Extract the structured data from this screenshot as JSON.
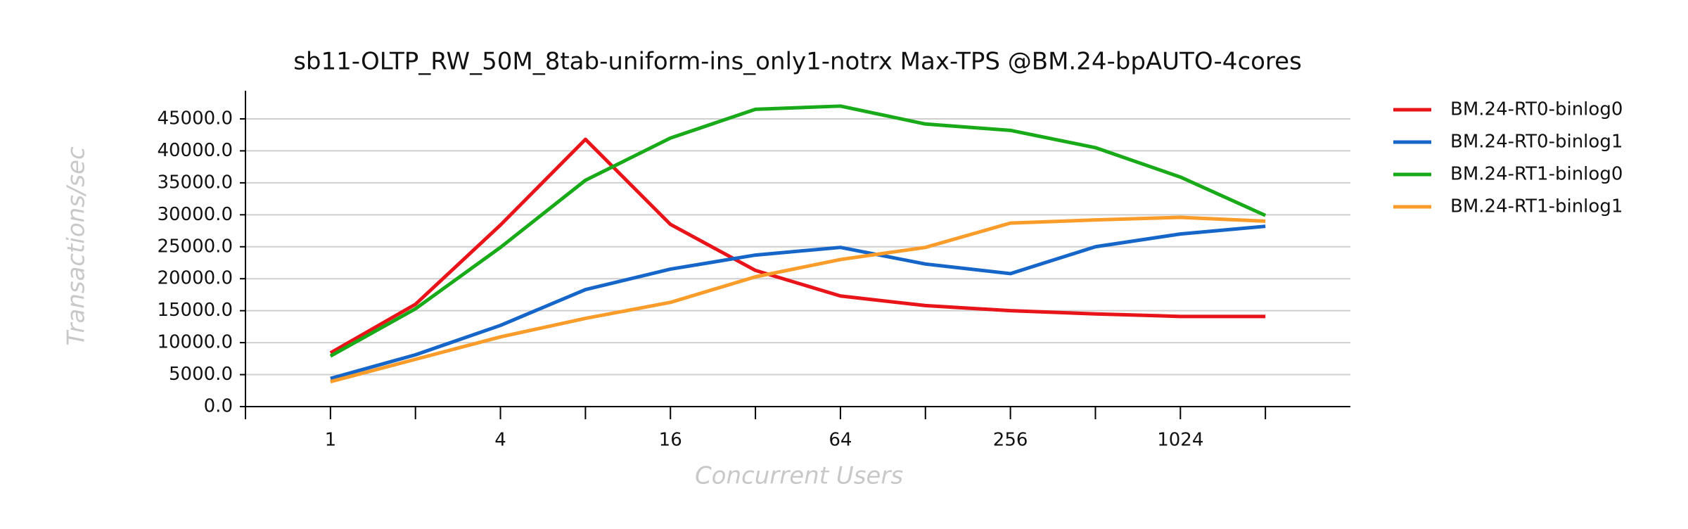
{
  "chart_data": {
    "type": "line",
    "title": "sb11-OLTP_RW_50M_8tab-uniform-ins_only1-notrx Max-TPS @BM.24-bpAUTO-4cores",
    "x_label": "Concurrent Users",
    "y_label": "Transactions/sec",
    "x": [
      1,
      2,
      4,
      8,
      16,
      32,
      64,
      128,
      256,
      512,
      1024,
      2048
    ],
    "x_log_base": 2,
    "xlim": [
      0.5,
      4096
    ],
    "xticks": [
      1,
      4,
      16,
      64,
      256,
      1024
    ],
    "xminorticks": [
      0.5,
      2,
      8,
      32,
      128,
      512,
      2048
    ],
    "ylim": [
      0,
      49400
    ],
    "yticks": [
      {
        "value": 0,
        "label": "0.0"
      },
      {
        "value": 5000,
        "label": "5000.0"
      },
      {
        "value": 10000,
        "label": "10000.0"
      },
      {
        "value": 15000,
        "label": "15000.0"
      },
      {
        "value": 20000,
        "label": "20000.0"
      },
      {
        "value": 25000,
        "label": "25000.0"
      },
      {
        "value": 30000,
        "label": "30000.0"
      },
      {
        "value": 35000,
        "label": "35000.0"
      },
      {
        "value": 40000,
        "label": "40000.0"
      },
      {
        "value": 45000,
        "label": "45000.0"
      }
    ],
    "grid": true,
    "legend": "right",
    "series": [
      {
        "name": "BM.24-RT0-binlog0",
        "color": "#e8141a",
        "values": [
          8400,
          16000,
          28400,
          41800,
          28500,
          21300,
          17300,
          15800,
          15000,
          14500,
          14100,
          14100
        ]
      },
      {
        "name": "BM.24-RT0-binlog1",
        "color": "#1566c8",
        "values": [
          4400,
          8100,
          12700,
          18300,
          21500,
          23700,
          24900,
          22300,
          20800,
          25000,
          27000,
          28200
        ]
      },
      {
        "name": "BM.24-RT1-binlog0",
        "color": "#19aa19",
        "values": [
          7900,
          15300,
          24900,
          35400,
          42000,
          46500,
          47000,
          44200,
          43200,
          40500,
          35900,
          29900
        ]
      },
      {
        "name": "BM.24-RT1-binlog1",
        "color": "#f99c2a",
        "values": [
          3900,
          7400,
          10900,
          13800,
          16300,
          20300,
          23000,
          24900,
          28700,
          29200,
          29600,
          29000
        ]
      }
    ]
  }
}
